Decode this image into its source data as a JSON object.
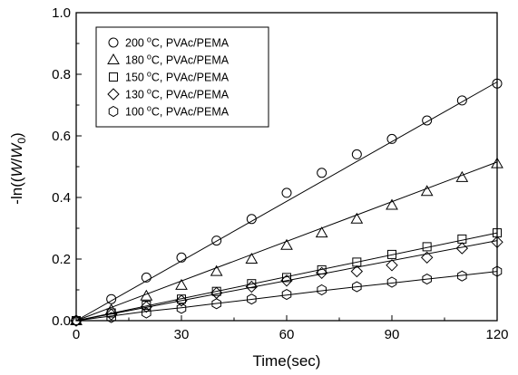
{
  "chart_data": {
    "type": "scatter",
    "title": "",
    "xlabel": "Time(sec)",
    "ylabel_parts": {
      "prefix": "-ln((",
      "w1": "W",
      "slash": "/",
      "w2": "W",
      "sub": "0",
      "suffix": ")"
    },
    "xlim": [
      0,
      120
    ],
    "ylim": [
      0.0,
      1.0
    ],
    "xticks": [
      0,
      30,
      60,
      90,
      120
    ],
    "xtick_labels": [
      "0",
      "30",
      "60",
      "90",
      "120"
    ],
    "yticks": [
      0.0,
      0.2,
      0.4,
      0.6,
      0.8,
      1.0
    ],
    "ytick_labels": [
      "0.0",
      "0.2",
      "0.4",
      "0.6",
      "0.8",
      "1.0"
    ],
    "grid": false,
    "legend_position": "top-left",
    "x": [
      0,
      10,
      20,
      30,
      40,
      50,
      60,
      70,
      80,
      90,
      100,
      110,
      120
    ],
    "series": [
      {
        "name": "200 °C, PVAc/PEMA",
        "temp": "200",
        "sup": "o",
        "label_rest": "C, PVAc/PEMA",
        "marker": "circle",
        "values": [
          0.0,
          0.07,
          0.14,
          0.205,
          0.26,
          0.33,
          0.415,
          0.48,
          0.54,
          0.59,
          0.65,
          0.715,
          0.77
        ],
        "fit": [
          [
            0,
            0.0
          ],
          [
            120,
            0.775
          ]
        ]
      },
      {
        "name": "180 °C, PVAc/PEMA",
        "temp": "180",
        "sup": "o",
        "label_rest": "C, PVAc/PEMA",
        "marker": "triangle",
        "values": [
          0.0,
          0.035,
          0.08,
          0.115,
          0.16,
          0.2,
          0.245,
          0.285,
          0.33,
          0.375,
          0.42,
          0.465,
          0.51
        ],
        "fit": [
          [
            0,
            0.0
          ],
          [
            120,
            0.515
          ]
        ]
      },
      {
        "name": "150 °C, PVAc/PEMA",
        "temp": "150",
        "sup": "o",
        "label_rest": "C, PVAc/PEMA",
        "marker": "square",
        "values": [
          0.0,
          0.025,
          0.05,
          0.07,
          0.095,
          0.12,
          0.14,
          0.165,
          0.19,
          0.215,
          0.24,
          0.265,
          0.285
        ],
        "fit": [
          [
            0,
            0.0
          ],
          [
            120,
            0.285
          ]
        ]
      },
      {
        "name": "130 °C, PVAc/PEMA",
        "temp": "130",
        "sup": "o",
        "label_rest": "C, PVAc/PEMA",
        "marker": "diamond",
        "values": [
          0.0,
          0.02,
          0.045,
          0.065,
          0.09,
          0.11,
          0.13,
          0.155,
          0.16,
          0.18,
          0.205,
          0.235,
          0.255
        ],
        "fit": [
          [
            0,
            0.0
          ],
          [
            120,
            0.26
          ]
        ]
      },
      {
        "name": "100 °C, PVAc/PEMA",
        "temp": "100",
        "sup": "o",
        "label_rest": "C, PVAc/PEMA",
        "marker": "hexagon",
        "values": [
          0.0,
          0.01,
          0.025,
          0.04,
          0.055,
          0.07,
          0.085,
          0.1,
          0.11,
          0.125,
          0.135,
          0.145,
          0.16
        ],
        "fit": [
          [
            0,
            0.0
          ],
          [
            10,
            0.015
          ],
          [
            20,
            0.03
          ],
          [
            30,
            0.042
          ],
          [
            40,
            0.056
          ],
          [
            50,
            0.069
          ],
          [
            60,
            0.083
          ],
          [
            70,
            0.097
          ],
          [
            80,
            0.11
          ],
          [
            90,
            0.122
          ],
          [
            100,
            0.135
          ],
          [
            110,
            0.147
          ],
          [
            120,
            0.16
          ]
        ]
      }
    ]
  }
}
